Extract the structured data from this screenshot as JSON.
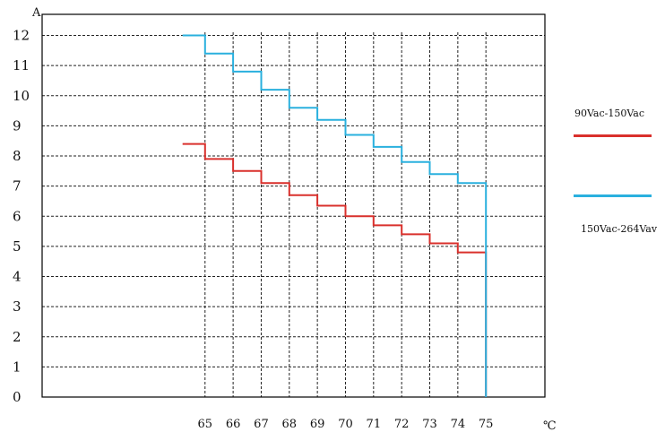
{
  "chart_data": {
    "type": "line",
    "title": "",
    "xlabel": "℃",
    "ylabel": "A",
    "x_ticks": [
      65,
      66,
      67,
      68,
      69,
      70,
      71,
      72,
      73,
      74,
      75
    ],
    "y_ticks": [
      0,
      1,
      2,
      3,
      4,
      5,
      6,
      7,
      8,
      9,
      10,
      11,
      12
    ],
    "xlim": [
      59.2,
      77.1
    ],
    "ylim": [
      0,
      12.7
    ],
    "grid": true,
    "legend_position": "right",
    "series": [
      {
        "name": "90Vac-150Vac",
        "color": "#d9302c",
        "step_values": [
          8.4,
          7.9,
          7.5,
          7.1,
          6.7,
          6.35,
          6.0,
          5.7,
          5.4,
          5.1,
          4.8
        ],
        "start_x": 64.2
      },
      {
        "name": "150Vac-264Vav",
        "color": "#2ab0de",
        "step_values": [
          12.0,
          11.4,
          10.8,
          10.2,
          9.6,
          9.2,
          8.7,
          8.3,
          7.8,
          7.4,
          7.1
        ],
        "start_x": 64.2
      }
    ]
  }
}
